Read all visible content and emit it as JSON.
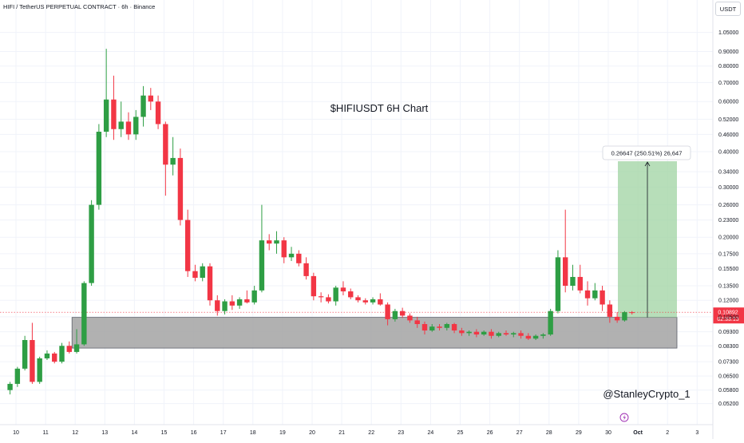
{
  "header": {
    "symbol_title": "HIFI / TetherUS PERPETUAL CONTRACT · 6h · Binance",
    "currency_button": "USDT"
  },
  "chart_data": {
    "type": "candlestick",
    "title": "$HIFIUSDT 6H Chart",
    "watermark": "@StanleyCrypto_1",
    "y_scale": "log",
    "ylim": [
      0.048,
      1.2
    ],
    "y_ticks": [
      "1.05000",
      "0.90000",
      "0.80000",
      "0.70000",
      "0.60000",
      "0.52000",
      "0.46000",
      "0.40000",
      "0.34000",
      "0.30000",
      "0.26000",
      "0.23000",
      "0.20000",
      "0.17500",
      "0.15500",
      "0.13500",
      "0.12000",
      "0.10500",
      "0.09300",
      "0.08300",
      "0.07300",
      "0.06500",
      "0.05800",
      "0.05200"
    ],
    "x_ticks": [
      "10",
      "11",
      "12",
      "13",
      "14",
      "15",
      "16",
      "17",
      "18",
      "19",
      "20",
      "21",
      "22",
      "23",
      "24",
      "25",
      "26",
      "27",
      "28",
      "29",
      "30",
      "Oct",
      "2",
      "3"
    ],
    "colors": {
      "up": "#26a69a",
      "down": "#ef5350",
      "candle_up": "#2e9e44",
      "candle_down": "#f23645",
      "zone": "#a3a3a3",
      "target": "#a5d6a7"
    },
    "current_price": {
      "label": "0.10892",
      "countdown": "02:33:13",
      "value": 0.10892
    },
    "measure_label": "0.26647 (250.51%) 26,647",
    "support_zone": {
      "low": 0.0815,
      "high": 0.1045,
      "from": "12",
      "to": "30"
    },
    "target_box": {
      "low": 0.1045,
      "high": 0.37
    },
    "candles": [
      {
        "x": 9.8,
        "o": 0.058,
        "h": 0.062,
        "l": 0.056,
        "c": 0.061
      },
      {
        "x": 10.05,
        "o": 0.061,
        "h": 0.07,
        "l": 0.0595,
        "c": 0.069
      },
      {
        "x": 10.3,
        "o": 0.069,
        "h": 0.09,
        "l": 0.068,
        "c": 0.087
      },
      {
        "x": 10.55,
        "o": 0.087,
        "h": 0.1,
        "l": 0.061,
        "c": 0.062
      },
      {
        "x": 10.8,
        "o": 0.062,
        "h": 0.076,
        "l": 0.061,
        "c": 0.075
      },
      {
        "x": 11.05,
        "o": 0.075,
        "h": 0.08,
        "l": 0.074,
        "c": 0.078
      },
      {
        "x": 11.3,
        "o": 0.078,
        "h": 0.079,
        "l": 0.072,
        "c": 0.073
      },
      {
        "x": 11.55,
        "o": 0.073,
        "h": 0.085,
        "l": 0.072,
        "c": 0.083
      },
      {
        "x": 11.8,
        "o": 0.083,
        "h": 0.086,
        "l": 0.078,
        "c": 0.079
      },
      {
        "x": 12.05,
        "o": 0.079,
        "h": 0.095,
        "l": 0.078,
        "c": 0.084
      },
      {
        "x": 12.3,
        "o": 0.084,
        "h": 0.14,
        "l": 0.083,
        "c": 0.138
      },
      {
        "x": 12.55,
        "o": 0.138,
        "h": 0.27,
        "l": 0.135,
        "c": 0.26
      },
      {
        "x": 12.8,
        "o": 0.26,
        "h": 0.5,
        "l": 0.25,
        "c": 0.47
      },
      {
        "x": 13.05,
        "o": 0.47,
        "h": 0.92,
        "l": 0.45,
        "c": 0.61
      },
      {
        "x": 13.3,
        "o": 0.61,
        "h": 0.74,
        "l": 0.44,
        "c": 0.48
      },
      {
        "x": 13.55,
        "o": 0.48,
        "h": 0.6,
        "l": 0.45,
        "c": 0.51
      },
      {
        "x": 13.8,
        "o": 0.51,
        "h": 0.55,
        "l": 0.44,
        "c": 0.46
      },
      {
        "x": 14.05,
        "o": 0.46,
        "h": 0.56,
        "l": 0.44,
        "c": 0.53
      },
      {
        "x": 14.3,
        "o": 0.53,
        "h": 0.68,
        "l": 0.49,
        "c": 0.63
      },
      {
        "x": 14.55,
        "o": 0.63,
        "h": 0.67,
        "l": 0.56,
        "c": 0.6
      },
      {
        "x": 14.8,
        "o": 0.6,
        "h": 0.63,
        "l": 0.48,
        "c": 0.5
      },
      {
        "x": 15.05,
        "o": 0.5,
        "h": 0.51,
        "l": 0.28,
        "c": 0.36
      },
      {
        "x": 15.3,
        "o": 0.36,
        "h": 0.45,
        "l": 0.33,
        "c": 0.38
      },
      {
        "x": 15.55,
        "o": 0.38,
        "h": 0.41,
        "l": 0.22,
        "c": 0.23
      },
      {
        "x": 15.8,
        "o": 0.23,
        "h": 0.25,
        "l": 0.145,
        "c": 0.152
      },
      {
        "x": 16.05,
        "o": 0.152,
        "h": 0.16,
        "l": 0.14,
        "c": 0.144
      },
      {
        "x": 16.3,
        "o": 0.144,
        "h": 0.162,
        "l": 0.14,
        "c": 0.158
      },
      {
        "x": 16.55,
        "o": 0.158,
        "h": 0.162,
        "l": 0.115,
        "c": 0.12
      },
      {
        "x": 16.8,
        "o": 0.12,
        "h": 0.125,
        "l": 0.106,
        "c": 0.11
      },
      {
        "x": 17.05,
        "o": 0.11,
        "h": 0.121,
        "l": 0.107,
        "c": 0.119
      },
      {
        "x": 17.3,
        "o": 0.119,
        "h": 0.125,
        "l": 0.111,
        "c": 0.115
      },
      {
        "x": 17.55,
        "o": 0.115,
        "h": 0.123,
        "l": 0.112,
        "c": 0.121
      },
      {
        "x": 17.8,
        "o": 0.121,
        "h": 0.13,
        "l": 0.117,
        "c": 0.118
      },
      {
        "x": 18.05,
        "o": 0.118,
        "h": 0.135,
        "l": 0.116,
        "c": 0.13
      },
      {
        "x": 18.3,
        "o": 0.13,
        "h": 0.26,
        "l": 0.128,
        "c": 0.195
      },
      {
        "x": 18.55,
        "o": 0.195,
        "h": 0.205,
        "l": 0.18,
        "c": 0.19
      },
      {
        "x": 18.8,
        "o": 0.19,
        "h": 0.21,
        "l": 0.175,
        "c": 0.195
      },
      {
        "x": 19.05,
        "o": 0.195,
        "h": 0.2,
        "l": 0.162,
        "c": 0.17
      },
      {
        "x": 19.3,
        "o": 0.17,
        "h": 0.185,
        "l": 0.165,
        "c": 0.175
      },
      {
        "x": 19.55,
        "o": 0.175,
        "h": 0.18,
        "l": 0.158,
        "c": 0.162
      },
      {
        "x": 19.8,
        "o": 0.162,
        "h": 0.17,
        "l": 0.142,
        "c": 0.146
      },
      {
        "x": 20.05,
        "o": 0.146,
        "h": 0.15,
        "l": 0.12,
        "c": 0.124
      },
      {
        "x": 20.3,
        "o": 0.124,
        "h": 0.128,
        "l": 0.118,
        "c": 0.123
      },
      {
        "x": 20.55,
        "o": 0.123,
        "h": 0.126,
        "l": 0.117,
        "c": 0.119
      },
      {
        "x": 20.8,
        "o": 0.119,
        "h": 0.135,
        "l": 0.115,
        "c": 0.133
      },
      {
        "x": 21.05,
        "o": 0.133,
        "h": 0.14,
        "l": 0.125,
        "c": 0.129
      },
      {
        "x": 21.3,
        "o": 0.129,
        "h": 0.132,
        "l": 0.121,
        "c": 0.123
      },
      {
        "x": 21.55,
        "o": 0.123,
        "h": 0.125,
        "l": 0.118,
        "c": 0.12
      },
      {
        "x": 21.8,
        "o": 0.12,
        "h": 0.122,
        "l": 0.116,
        "c": 0.118
      },
      {
        "x": 22.05,
        "o": 0.118,
        "h": 0.123,
        "l": 0.116,
        "c": 0.121
      },
      {
        "x": 22.3,
        "o": 0.121,
        "h": 0.127,
        "l": 0.115,
        "c": 0.116
      },
      {
        "x": 22.55,
        "o": 0.116,
        "h": 0.118,
        "l": 0.098,
        "c": 0.103
      },
      {
        "x": 22.8,
        "o": 0.103,
        "h": 0.112,
        "l": 0.101,
        "c": 0.11
      },
      {
        "x": 23.05,
        "o": 0.11,
        "h": 0.113,
        "l": 0.104,
        "c": 0.106
      },
      {
        "x": 23.3,
        "o": 0.106,
        "h": 0.108,
        "l": 0.1,
        "c": 0.102
      },
      {
        "x": 23.55,
        "o": 0.102,
        "h": 0.105,
        "l": 0.096,
        "c": 0.099
      },
      {
        "x": 23.8,
        "o": 0.099,
        "h": 0.101,
        "l": 0.091,
        "c": 0.094
      },
      {
        "x": 24.05,
        "o": 0.094,
        "h": 0.099,
        "l": 0.093,
        "c": 0.097
      },
      {
        "x": 24.3,
        "o": 0.097,
        "h": 0.099,
        "l": 0.094,
        "c": 0.096
      },
      {
        "x": 24.55,
        "o": 0.096,
        "h": 0.1,
        "l": 0.094,
        "c": 0.099
      },
      {
        "x": 24.8,
        "o": 0.099,
        "h": 0.1,
        "l": 0.092,
        "c": 0.094
      },
      {
        "x": 25.05,
        "o": 0.094,
        "h": 0.096,
        "l": 0.09,
        "c": 0.092
      },
      {
        "x": 25.3,
        "o": 0.092,
        "h": 0.094,
        "l": 0.09,
        "c": 0.093
      },
      {
        "x": 25.55,
        "o": 0.093,
        "h": 0.095,
        "l": 0.089,
        "c": 0.091
      },
      {
        "x": 25.8,
        "o": 0.091,
        "h": 0.094,
        "l": 0.09,
        "c": 0.093
      },
      {
        "x": 26.05,
        "o": 0.093,
        "h": 0.095,
        "l": 0.088,
        "c": 0.09
      },
      {
        "x": 26.3,
        "o": 0.09,
        "h": 0.093,
        "l": 0.089,
        "c": 0.092
      },
      {
        "x": 26.55,
        "o": 0.092,
        "h": 0.094,
        "l": 0.09,
        "c": 0.091
      },
      {
        "x": 26.8,
        "o": 0.091,
        "h": 0.093,
        "l": 0.089,
        "c": 0.092
      },
      {
        "x": 27.05,
        "o": 0.092,
        "h": 0.094,
        "l": 0.088,
        "c": 0.09
      },
      {
        "x": 27.3,
        "o": 0.09,
        "h": 0.092,
        "l": 0.087,
        "c": 0.088
      },
      {
        "x": 27.55,
        "o": 0.088,
        "h": 0.091,
        "l": 0.087,
        "c": 0.09
      },
      {
        "x": 27.8,
        "o": 0.09,
        "h": 0.092,
        "l": 0.088,
        "c": 0.091
      },
      {
        "x": 28.05,
        "o": 0.091,
        "h": 0.112,
        "l": 0.09,
        "c": 0.11
      },
      {
        "x": 28.3,
        "o": 0.11,
        "h": 0.18,
        "l": 0.108,
        "c": 0.17
      },
      {
        "x": 28.55,
        "o": 0.17,
        "h": 0.25,
        "l": 0.128,
        "c": 0.135
      },
      {
        "x": 28.8,
        "o": 0.135,
        "h": 0.16,
        "l": 0.13,
        "c": 0.145
      },
      {
        "x": 29.05,
        "o": 0.145,
        "h": 0.16,
        "l": 0.127,
        "c": 0.13
      },
      {
        "x": 29.3,
        "o": 0.13,
        "h": 0.14,
        "l": 0.115,
        "c": 0.122
      },
      {
        "x": 29.55,
        "o": 0.122,
        "h": 0.138,
        "l": 0.12,
        "c": 0.13
      },
      {
        "x": 29.8,
        "o": 0.13,
        "h": 0.135,
        "l": 0.11,
        "c": 0.116
      },
      {
        "x": 30.05,
        "o": 0.116,
        "h": 0.12,
        "l": 0.1,
        "c": 0.105
      },
      {
        "x": 30.3,
        "o": 0.105,
        "h": 0.109,
        "l": 0.1,
        "c": 0.102
      },
      {
        "x": 30.55,
        "o": 0.102,
        "h": 0.11,
        "l": 0.101,
        "c": 0.109
      },
      {
        "x": 30.8,
        "o": 0.109,
        "h": 0.11,
        "l": 0.107,
        "c": 0.1089
      }
    ]
  }
}
